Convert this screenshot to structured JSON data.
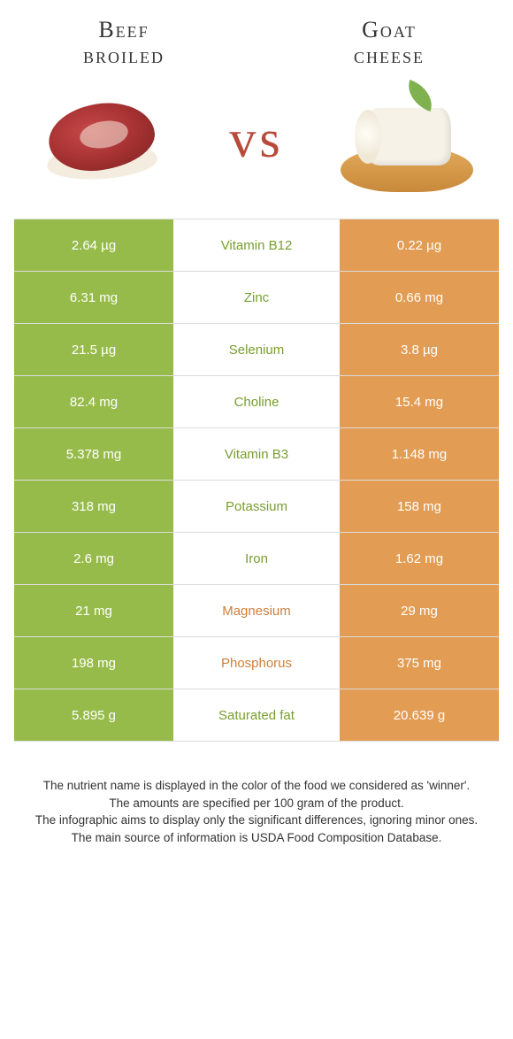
{
  "colors": {
    "left": "#97bb4b",
    "right": "#e29c53",
    "left_text": "#789e2e",
    "right_text": "#cf7f3a",
    "vs": "#b84a3a"
  },
  "titles": {
    "left_line1": "Beef",
    "left_line2": "broiled",
    "right_line1": "Goat",
    "right_line2": "cheese",
    "vs": "vs"
  },
  "rows": [
    {
      "left": "2.64 µg",
      "name": "Vitamin B12",
      "right": "0.22 µg",
      "winner": "left"
    },
    {
      "left": "6.31 mg",
      "name": "Zinc",
      "right": "0.66 mg",
      "winner": "left"
    },
    {
      "left": "21.5 µg",
      "name": "Selenium",
      "right": "3.8 µg",
      "winner": "left"
    },
    {
      "left": "82.4 mg",
      "name": "Choline",
      "right": "15.4 mg",
      "winner": "left"
    },
    {
      "left": "5.378 mg",
      "name": "Vitamin B3",
      "right": "1.148 mg",
      "winner": "left"
    },
    {
      "left": "318 mg",
      "name": "Potassium",
      "right": "158 mg",
      "winner": "left"
    },
    {
      "left": "2.6 mg",
      "name": "Iron",
      "right": "1.62 mg",
      "winner": "left"
    },
    {
      "left": "21 mg",
      "name": "Magnesium",
      "right": "29 mg",
      "winner": "right"
    },
    {
      "left": "198 mg",
      "name": "Phosphorus",
      "right": "375 mg",
      "winner": "right"
    },
    {
      "left": "5.895 g",
      "name": "Saturated fat",
      "right": "20.639 g",
      "winner": "left"
    }
  ],
  "footer": {
    "l1": "The nutrient name is displayed in the color of the food we considered as 'winner'.",
    "l2": "The amounts are specified per 100 gram of the product.",
    "l3": "The infographic aims to display only the significant differences, ignoring minor ones.",
    "l4": "The main source of information is USDA Food Composition Database."
  }
}
